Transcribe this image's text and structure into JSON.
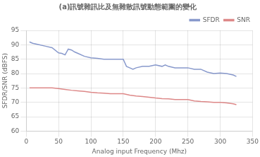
{
  "chart_data": {
    "type": "line",
    "title": "(a)訊號雜訊比及無雜散訊號動態範圍的變化",
    "xlabel": "Analog input Frequency (Mhz)",
    "ylabel": "SFDR/SNR (dBFS)",
    "xlim": [
      0,
      350
    ],
    "ylim": [
      60,
      95
    ],
    "xticks": [
      0,
      50,
      100,
      150,
      200,
      250,
      300,
      350
    ],
    "yticks": [
      60,
      65,
      70,
      75,
      80,
      85,
      90,
      95
    ],
    "grid": true,
    "legend": "upper right",
    "series": [
      {
        "name": "SFDR",
        "color": "#8899cc",
        "x": [
          5,
          10,
          20,
          30,
          40,
          50,
          55,
          60,
          65,
          70,
          75,
          80,
          90,
          100,
          110,
          120,
          130,
          140,
          150,
          155,
          160,
          165,
          170,
          180,
          190,
          200,
          210,
          215,
          220,
          230,
          240,
          250,
          260,
          270,
          280,
          290,
          300,
          310,
          320,
          325
        ],
        "values": [
          91,
          90.5,
          90,
          89.5,
          89,
          87.2,
          87,
          86.5,
          88.5,
          88.2,
          87.5,
          87,
          86,
          85.5,
          85.3,
          85,
          85,
          85,
          85,
          82.5,
          82,
          81.5,
          82,
          82.5,
          82.5,
          83,
          82.5,
          83,
          82.5,
          82,
          82,
          82,
          81.5,
          81.5,
          80.5,
          80,
          80.2,
          80,
          79.5,
          79
        ]
      },
      {
        "name": "SNR",
        "color": "#dd8888",
        "x": [
          5,
          10,
          20,
          30,
          40,
          50,
          60,
          70,
          80,
          90,
          100,
          110,
          120,
          130,
          140,
          150,
          160,
          170,
          180,
          190,
          200,
          210,
          220,
          230,
          240,
          250,
          260,
          270,
          280,
          290,
          300,
          310,
          320,
          325
        ],
        "values": [
          75,
          75,
          75,
          75,
          75,
          74.8,
          74.5,
          74.2,
          74,
          73.8,
          73.5,
          73.3,
          73.2,
          73,
          73,
          73,
          72.5,
          72.2,
          72,
          71.8,
          71.5,
          71.3,
          71.2,
          71,
          71,
          71,
          70.5,
          70.3,
          70.2,
          70,
          70,
          69.8,
          69.5,
          69.2
        ]
      }
    ]
  }
}
